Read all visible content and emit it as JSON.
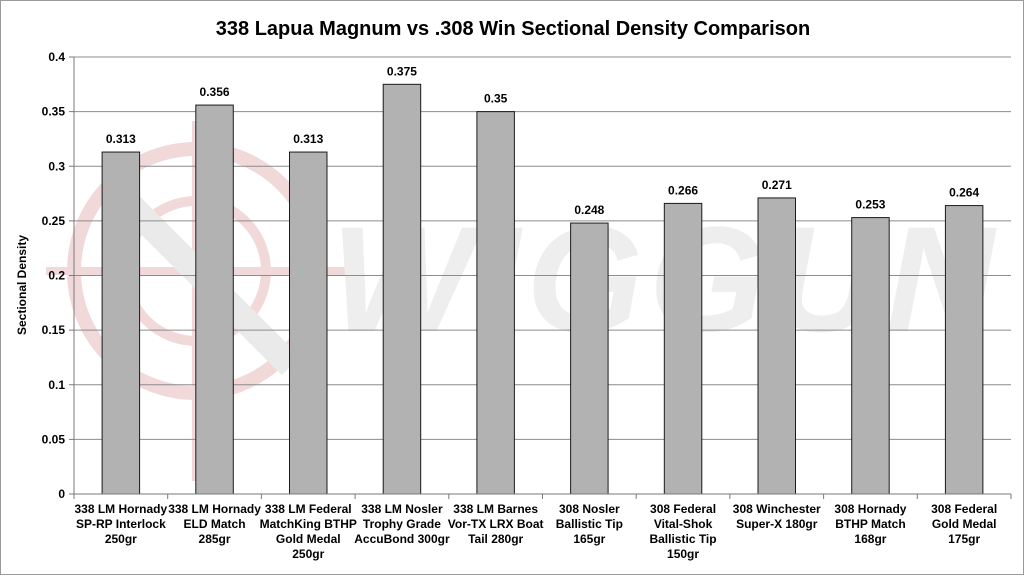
{
  "watermark": {
    "text": "WIGGUN",
    "color": "#e9c9c9",
    "icon": "crosshair-logo-icon"
  },
  "chart_data": {
    "type": "bar",
    "title": "338 Lapua Magnum vs .308 Win Sectional Density Comparison",
    "xlabel": "",
    "ylabel": "Sectional Density",
    "ylim": [
      0,
      0.4
    ],
    "yticks": [
      "0",
      "0.05",
      "0.1",
      "0.15",
      "0.2",
      "0.25",
      "0.3",
      "0.35",
      "0.4"
    ],
    "grid": true,
    "legend": "none",
    "bar_color": "#b2b2b2",
    "categories": [
      [
        "338 LM Hornady",
        "SP-RP Interlock",
        "250gr"
      ],
      [
        "338 LM Hornady",
        "ELD Match",
        "285gr"
      ],
      [
        "338 LM Federal",
        "MatchKing BTHP",
        "Gold Medal",
        "250gr"
      ],
      [
        "338 LM Nosler",
        "Trophy Grade",
        "AccuBond 300gr"
      ],
      [
        "338 LM Barnes",
        "Vor-TX LRX Boat",
        "Tail 280gr"
      ],
      [
        "308 Nosler",
        "Ballistic Tip",
        "165gr"
      ],
      [
        "308 Federal",
        "Vital-Shok",
        "Ballistic Tip",
        "150gr"
      ],
      [
        "308 Winchester",
        "Super-X 180gr"
      ],
      [
        "308 Hornady",
        "BTHP Match",
        "168gr"
      ],
      [
        "308 Federal",
        "Gold Medal",
        "175gr"
      ]
    ],
    "values": [
      0.313,
      0.356,
      0.313,
      0.375,
      0.35,
      0.248,
      0.266,
      0.271,
      0.253,
      0.264
    ],
    "data_labels": [
      "0.313",
      "0.356",
      "0.313",
      "0.375",
      "0.35",
      "0.248",
      "0.266",
      "0.271",
      "0.253",
      "0.264"
    ]
  }
}
